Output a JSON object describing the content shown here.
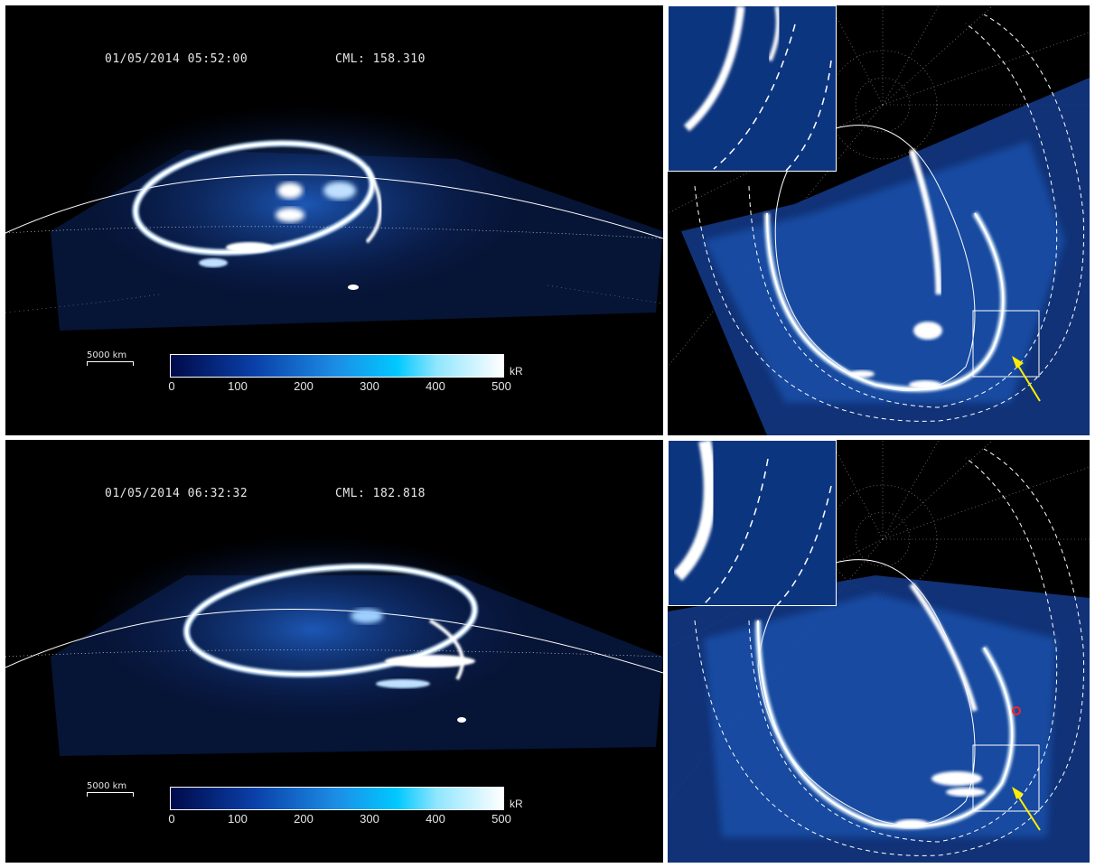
{
  "top_left": {
    "timestamp": "01/05/2014 05:52:00",
    "cml": "CML: 158.310"
  },
  "bottom_left": {
    "timestamp": "01/05/2014 06:32:32",
    "cml": "CML: 182.818"
  },
  "scale_bar": {
    "label": "5000 km"
  },
  "colorbar": {
    "unit": "kR",
    "ticks": [
      "0",
      "100",
      "200",
      "300",
      "400",
      "500"
    ],
    "colors": [
      "#000a4a",
      "#0a3fa8",
      "#1c8ee6",
      "#00c8ff",
      "#8fe6ff",
      "#ffffff"
    ]
  },
  "colors": {
    "aurora": "#3f9bff",
    "emission": "#e6f5ff",
    "arrow": "#ffee00",
    "marker": "#ff2222"
  }
}
